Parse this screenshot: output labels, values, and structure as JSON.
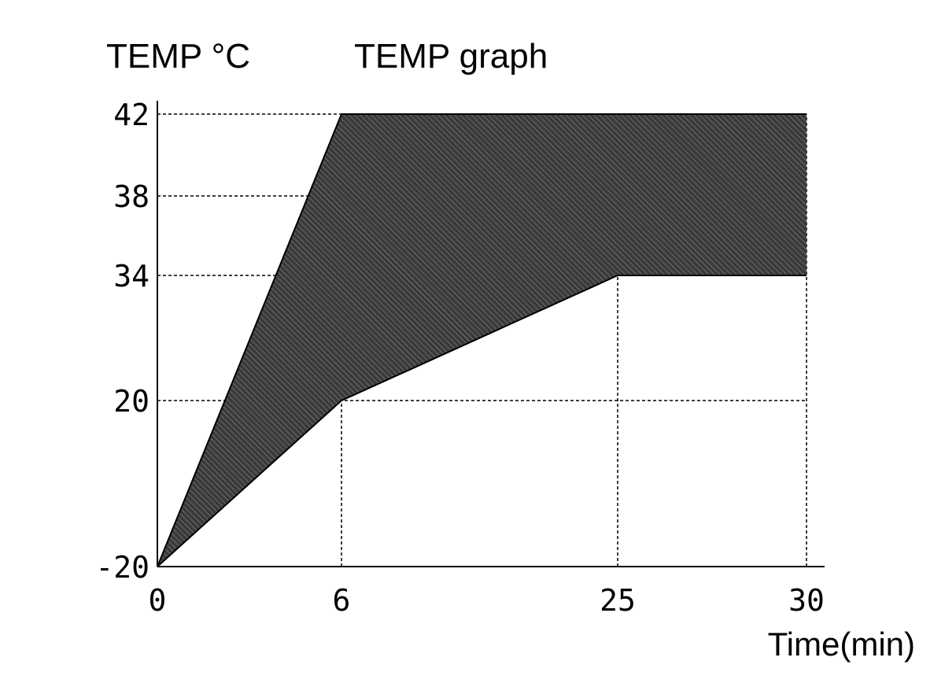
{
  "chart_data": {
    "type": "area",
    "title": "TEMP graph",
    "ylabel": "TEMP °C",
    "xlabel": "Time(min)",
    "x_ticks": [
      0,
      6,
      25,
      30
    ],
    "x_tick_labels": [
      "0",
      "6",
      "25",
      "30"
    ],
    "y_ticks": [
      -20,
      20,
      34,
      38,
      42
    ],
    "y_tick_labels": [
      "-20",
      "20",
      "34",
      "38",
      "42"
    ],
    "xlim": [
      0,
      30
    ],
    "ylim": [
      -20,
      42
    ],
    "grid": "dashed at tick values",
    "series": [
      {
        "role": "upper_bound",
        "x": [
          0,
          6,
          30
        ],
        "y": [
          -20,
          42,
          42
        ]
      },
      {
        "role": "lower_bound",
        "x": [
          0,
          6,
          25,
          30
        ],
        "y": [
          -20,
          20,
          34,
          34
        ]
      }
    ],
    "fill": "hatched region between upper and lower bound",
    "colors": {
      "fill": "#3a3a3a",
      "hatch": "#9a9a9a",
      "axis": "#000000"
    }
  }
}
